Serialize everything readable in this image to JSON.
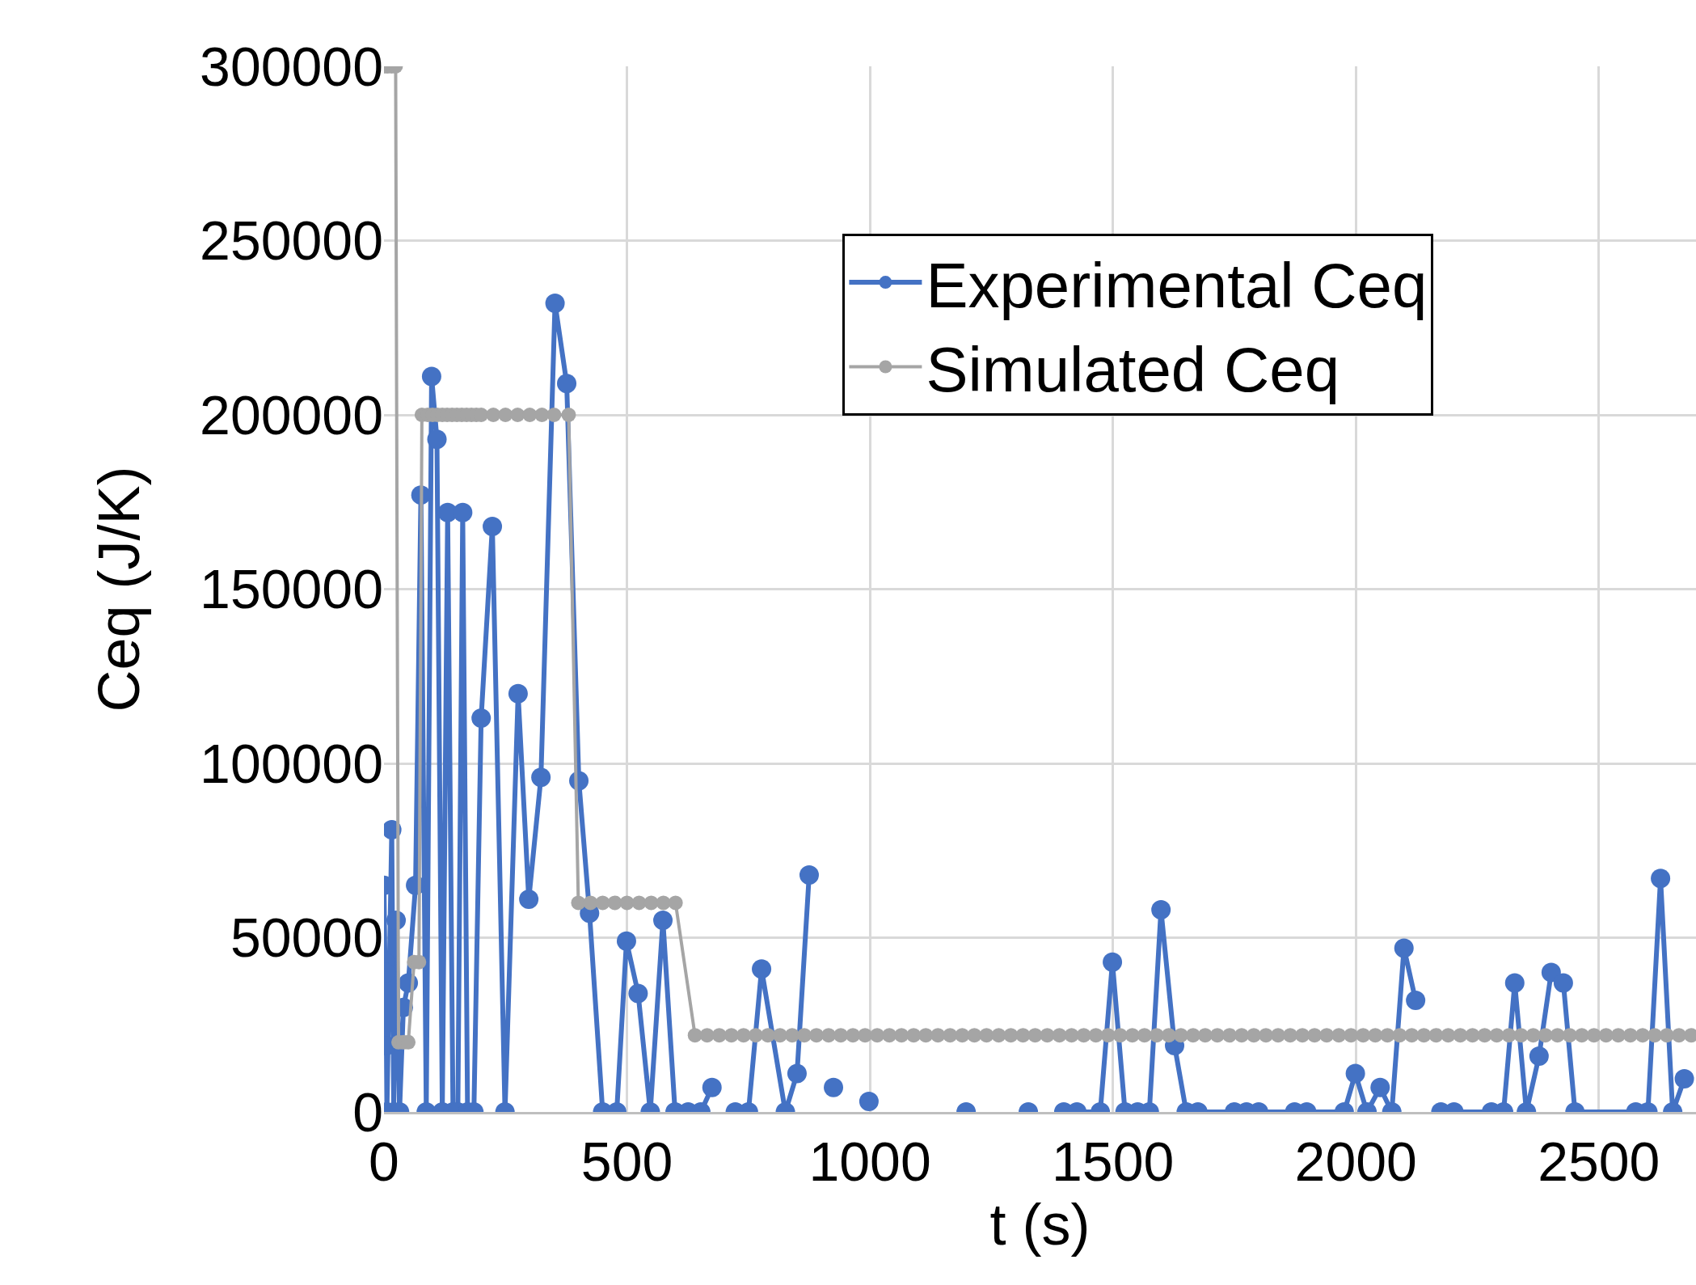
{
  "chart_data": {
    "type": "line",
    "xlabel": "t (s)",
    "ylabel": "Ceq (J/K)",
    "xlim": [
      0,
      2700
    ],
    "xticks": [
      0,
      500,
      1000,
      1500,
      2000,
      2500
    ],
    "ylim": [
      0,
      300000
    ],
    "yticks": [
      0,
      50000,
      100000,
      150000,
      200000,
      250000,
      300000
    ],
    "grid": true,
    "legend": "top right",
    "marker": "circle",
    "line_style": "solid",
    "series": [
      {
        "name": "Experimental Ceq",
        "color": "#4472c4",
        "x": [
          0,
          2,
          4,
          5,
          6,
          16,
          20,
          25,
          32,
          40,
          50,
          65,
          76,
          87,
          98,
          109,
          120,
          131,
          142,
          152,
          162,
          172,
          185,
          200,
          223,
          249,
          276,
          298,
          323,
          352,
          376,
          401,
          423,
          450,
          479,
          499,
          523,
          548,
          574,
          599,
          626,
          652,
          675,
          700,
          723,
          750,
          777,
          826,
          850,
          875,
          900,
          925,
          940,
          985,
          998,
          1100,
          1198,
          1260,
          1326,
          1360,
          1399,
          1426,
          1474,
          1499,
          1525,
          1551,
          1575,
          1599,
          1627,
          1651,
          1675,
          1750,
          1775,
          1800,
          1874,
          1899,
          1976,
          1999,
          2023,
          2050,
          2074,
          2099,
          2123,
          2150,
          2175,
          2202,
          2279,
          2304,
          2327,
          2351,
          2377,
          2402,
          2427,
          2451,
          2576,
          2601,
          2627,
          2652,
          2676
        ],
        "values": [
          65000,
          43000,
          40000,
          19000,
          0,
          81000,
          0,
          55000,
          0,
          30000,
          37000,
          65000,
          177000,
          0,
          211000,
          193000,
          0,
          172000,
          0,
          0,
          172000,
          0,
          0,
          113000,
          168000,
          0,
          120000,
          61000,
          96000,
          232000,
          209000,
          95000,
          57000,
          0,
          0,
          49000,
          34000,
          0,
          55000,
          0,
          0,
          0,
          7000,
          null,
          0,
          0,
          41000,
          0,
          11000,
          68000,
          null,
          7000,
          null,
          null,
          3000,
          null,
          0,
          null,
          0,
          null,
          0,
          0,
          0,
          43000,
          0,
          0,
          0,
          58000,
          19000,
          0,
          0,
          0,
          0,
          0,
          0,
          0,
          0,
          11000,
          0,
          7000,
          0,
          47000,
          32000,
          null,
          0,
          0,
          0,
          0,
          37000,
          0,
          16000,
          40000,
          37000,
          0,
          0,
          0,
          67000,
          0,
          9500
        ]
      },
      {
        "name": "Simulated Ceq",
        "color": "#a5a5a5",
        "x": [
          0,
          8,
          16,
          24,
          30,
          40,
          50,
          62,
          72,
          78,
          90,
          100,
          110,
          120,
          130,
          140,
          150,
          160,
          170,
          180,
          190,
          200,
          225,
          250,
          275,
          300,
          325,
          350,
          380,
          400,
          425,
          450,
          475,
          500,
          525,
          550,
          575,
          600,
          640,
          665,
          690,
          715,
          740,
          765,
          790,
          815,
          840,
          865,
          890,
          915,
          940,
          965,
          990,
          1015,
          1040,
          1065,
          1090,
          1115,
          1140,
          1165,
          1190,
          1215,
          1240,
          1265,
          1290,
          1315,
          1340,
          1365,
          1390,
          1415,
          1440,
          1465,
          1490,
          1515,
          1540,
          1565,
          1590,
          1615,
          1640,
          1665,
          1690,
          1715,
          1740,
          1765,
          1790,
          1815,
          1840,
          1865,
          1890,
          1915,
          1940,
          1965,
          1990,
          2015,
          2040,
          2065,
          2090,
          2115,
          2140,
          2165,
          2190,
          2215,
          2240,
          2265,
          2290,
          2315,
          2340,
          2365,
          2390,
          2415,
          2440,
          2465,
          2490,
          2515,
          2540,
          2565,
          2590,
          2615,
          2640,
          2665,
          2690
        ],
        "values": [
          300000,
          300000,
          300000,
          300000,
          20000,
          20000,
          20000,
          43000,
          43000,
          200000,
          200000,
          200000,
          200000,
          200000,
          200000,
          200000,
          200000,
          200000,
          200000,
          200000,
          200000,
          200000,
          200000,
          200000,
          200000,
          200000,
          200000,
          200000,
          200000,
          60000,
          60000,
          60000,
          60000,
          60000,
          60000,
          60000,
          60000,
          60000,
          22000,
          22000,
          22000,
          22000,
          22000,
          22000,
          22000,
          22000,
          22000,
          22000,
          22000,
          22000,
          22000,
          22000,
          22000,
          22000,
          22000,
          22000,
          22000,
          22000,
          22000,
          22000,
          22000,
          22000,
          22000,
          22000,
          22000,
          22000,
          22000,
          22000,
          22000,
          22000,
          22000,
          22000,
          22000,
          22000,
          22000,
          22000,
          22000,
          22000,
          22000,
          22000,
          22000,
          22000,
          22000,
          22000,
          22000,
          22000,
          22000,
          22000,
          22000,
          22000,
          22000,
          22000,
          22000,
          22000,
          22000,
          22000,
          22000,
          22000,
          22000,
          22000,
          22000,
          22000,
          22000,
          22000,
          22000,
          22000,
          22000,
          22000,
          22000,
          22000,
          22000,
          22000,
          22000,
          22000,
          22000,
          22000,
          22000,
          22000,
          22000,
          22000,
          22000
        ]
      }
    ]
  }
}
